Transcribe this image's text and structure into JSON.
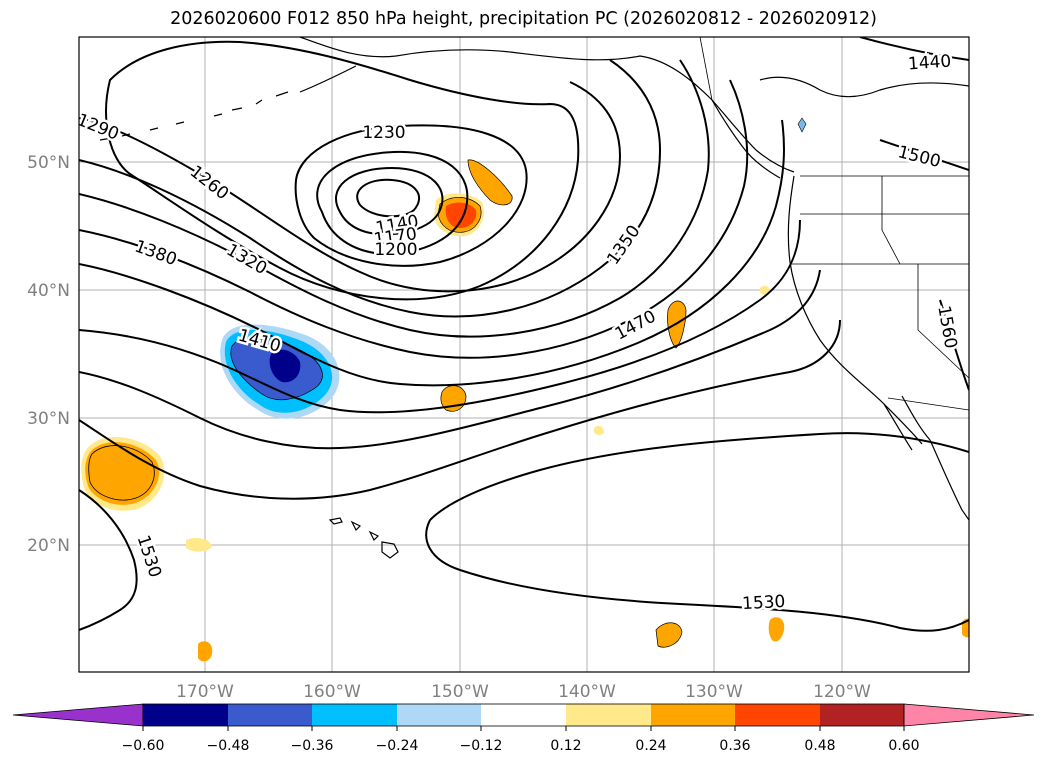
{
  "title": "2026020600 F012 850 hPa height, precipitation PC (2026020812 - 2026020912)",
  "map": {
    "lat_labels": [
      "50°N",
      "40°N",
      "30°N",
      "20°N"
    ],
    "lon_labels": [
      "170°W",
      "160°W",
      "150°W",
      "140°W",
      "130°W",
      "120°W"
    ],
    "contour_labels": [
      "1290",
      "1260",
      "1230",
      "1140",
      "1170",
      "1200",
      "1320",
      "1380",
      "1410",
      "1350",
      "1470",
      "1440",
      "1500",
      "1560",
      "1530",
      "1530"
    ]
  },
  "colorbar": {
    "colors": [
      "#9932cc",
      "#00008b",
      "#3a5bcd",
      "#00bfff",
      "#add8f6",
      "#ffffff",
      "#ffe98a",
      "#ffa500",
      "#ff4500",
      "#b22222",
      "#ff85a8"
    ],
    "ticks": [
      "−0.60",
      "−0.48",
      "−0.36",
      "−0.24",
      "−0.12",
      "0.12",
      "0.24",
      "0.36",
      "0.48",
      "0.60"
    ]
  }
}
